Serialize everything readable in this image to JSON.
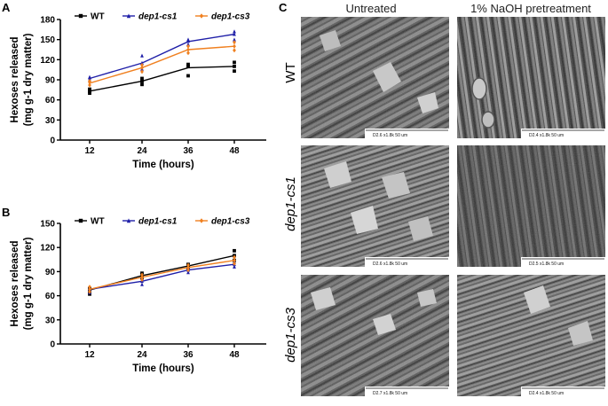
{
  "panels": {
    "A": "A",
    "B": "B",
    "C": "C"
  },
  "chart_data": [
    {
      "type": "line",
      "panel": "A",
      "x": [
        12,
        24,
        36,
        48
      ],
      "xlabel": "Time (hours)",
      "ylabel_main": "Hexoses released",
      "ylabel_unit": "(mg g-1 dry matter)",
      "ylim": [
        0,
        180
      ],
      "yticks": [
        0,
        30,
        60,
        90,
        120,
        150,
        180
      ],
      "legend_position": "top",
      "series": [
        {
          "name": "WT",
          "color": "#000000",
          "marker": "square",
          "values": [
            73,
            88,
            108,
            110
          ],
          "points": [
            [
              12,
              70
            ],
            [
              12,
              76
            ],
            [
              12,
              73
            ],
            [
              24,
              83
            ],
            [
              24,
              88
            ],
            [
              24,
              92
            ],
            [
              36,
              96
            ],
            [
              36,
              110
            ],
            [
              36,
              113
            ],
            [
              48,
              103
            ],
            [
              48,
              110
            ],
            [
              48,
              116
            ]
          ]
        },
        {
          "name": "dep1-cs1",
          "color": "#1f1fa8",
          "marker": "triangle",
          "values": [
            92,
            115,
            147,
            158
          ],
          "points": [
            [
              12,
              90
            ],
            [
              12,
              94
            ],
            [
              12,
              93
            ],
            [
              24,
              106
            ],
            [
              24,
              115
            ],
            [
              24,
              126
            ],
            [
              36,
              143
            ],
            [
              36,
              148
            ],
            [
              36,
              150
            ],
            [
              48,
              150
            ],
            [
              48,
              158
            ],
            [
              48,
              162
            ]
          ]
        },
        {
          "name": "dep1-cs3",
          "color": "#f08020",
          "marker": "diamond",
          "values": [
            85,
            108,
            135,
            140
          ],
          "points": [
            [
              12,
              82
            ],
            [
              12,
              86
            ],
            [
              12,
              88
            ],
            [
              24,
              102
            ],
            [
              24,
              108
            ],
            [
              24,
              112
            ],
            [
              36,
              130
            ],
            [
              36,
              135
            ],
            [
              36,
              140
            ],
            [
              48,
              134
            ],
            [
              48,
              140
            ],
            [
              48,
              146
            ]
          ]
        }
      ]
    },
    {
      "type": "line",
      "panel": "B",
      "x": [
        12,
        24,
        36,
        48
      ],
      "xlabel": "Time (hours)",
      "ylabel_main": "Hexoses released",
      "ylabel_unit": "(mg g-1 dry matter)",
      "ylim": [
        0,
        150
      ],
      "yticks": [
        0,
        30,
        60,
        90,
        120,
        150
      ],
      "legend_position": "top",
      "series": [
        {
          "name": "WT",
          "color": "#000000",
          "marker": "square",
          "values": [
            67,
            85,
            97,
            110
          ],
          "points": [
            [
              12,
              62
            ],
            [
              12,
              66
            ],
            [
              12,
              69
            ],
            [
              24,
              82
            ],
            [
              24,
              86
            ],
            [
              24,
              88
            ],
            [
              36,
              93
            ],
            [
              36,
              97
            ],
            [
              36,
              99
            ],
            [
              48,
              104
            ],
            [
              48,
              110
            ],
            [
              48,
              116
            ]
          ]
        },
        {
          "name": "dep1-cs1",
          "color": "#1f1fa8",
          "marker": "triangle",
          "values": [
            68,
            78,
            92,
            99
          ],
          "points": [
            [
              12,
              64
            ],
            [
              12,
              68
            ],
            [
              12,
              70
            ],
            [
              24,
              74
            ],
            [
              24,
              78
            ],
            [
              24,
              82
            ],
            [
              36,
              89
            ],
            [
              36,
              92
            ],
            [
              36,
              95
            ],
            [
              48,
              96
            ],
            [
              48,
              99
            ],
            [
              48,
              102
            ]
          ]
        },
        {
          "name": "dep1-cs3",
          "color": "#f08020",
          "marker": "diamond",
          "values": [
            68,
            83,
            95,
            104
          ],
          "points": [
            [
              12,
              65
            ],
            [
              12,
              68
            ],
            [
              12,
              71
            ],
            [
              24,
              80
            ],
            [
              24,
              83
            ],
            [
              24,
              86
            ],
            [
              36,
              92
            ],
            [
              36,
              95
            ],
            [
              36,
              98
            ],
            [
              48,
              100
            ],
            [
              48,
              104
            ],
            [
              48,
              108
            ]
          ]
        }
      ]
    }
  ],
  "sem": {
    "columns": [
      "Untreated",
      "1% NaOH pretreatment"
    ],
    "rows": [
      "WT",
      "dep1-cs1",
      "dep1-cs3"
    ],
    "captions": [
      [
        "D2.6  x1.8k  50 um",
        "D2.4  x1.8k  50 um"
      ],
      [
        "D2.6  x1.8k  50 um",
        "D2.5  x1.8k  50 um"
      ],
      [
        "D2.7  x1.8k  50 um",
        "D2.4  x1.8k  50 um"
      ]
    ]
  }
}
